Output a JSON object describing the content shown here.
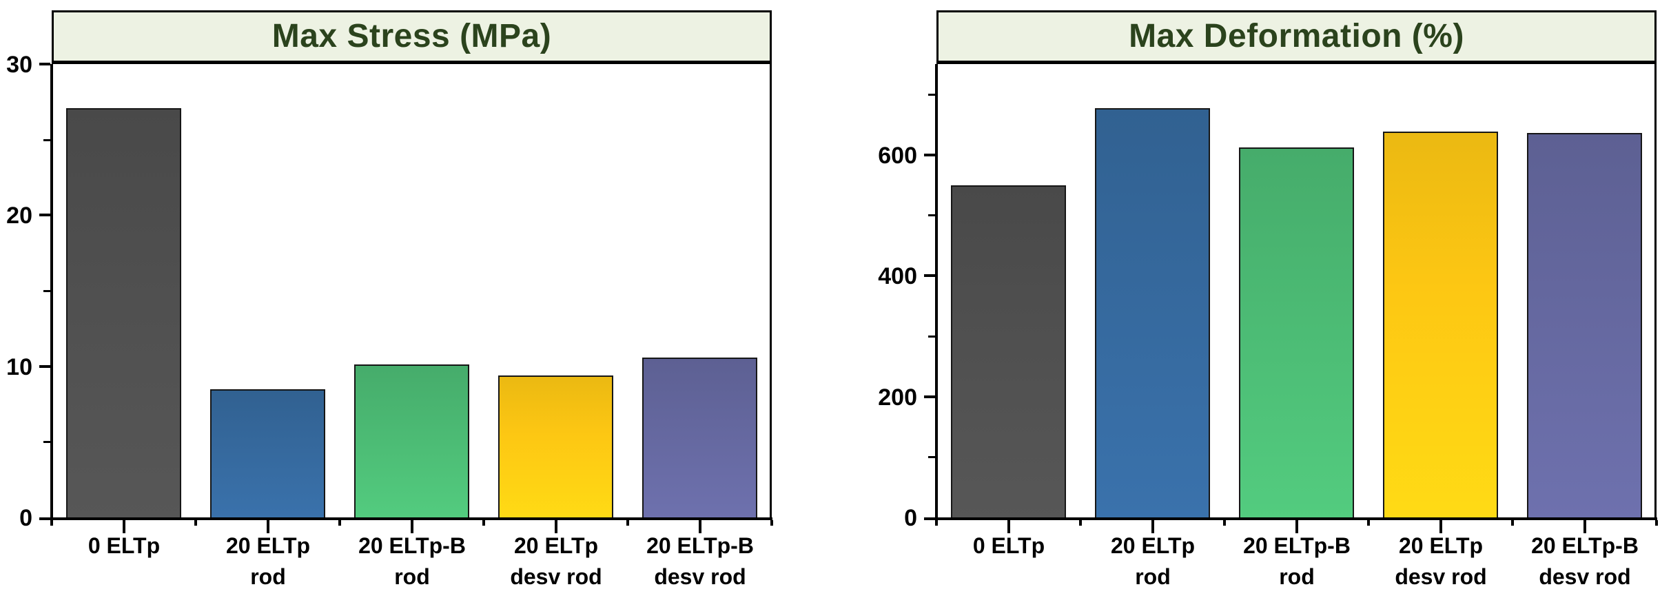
{
  "figure": {
    "background": "#ffffff"
  },
  "styles": {
    "title_bg": "#edf2e3",
    "title_text_color": "#2b431d",
    "axis_color": "#000000",
    "tick_label_color": "#000000",
    "bar_border_color": "#161616",
    "bar_colors": [
      "#4f4f4f",
      "#35689c",
      "#4bb973",
      "#fdc713",
      "#64679e"
    ]
  },
  "chart_data": [
    {
      "type": "bar",
      "title": "Max Stress (MPa)",
      "categories": [
        "0 ELTp",
        "20 ELTp rod",
        "20 ELTp-B rod",
        "20 ELTp desv rod",
        "20 ELTp-B desv rod"
      ],
      "tick_label_lines": [
        [
          "0 ELTp"
        ],
        [
          "20 ELTp",
          "rod"
        ],
        [
          "20 ELTp-B",
          "rod"
        ],
        [
          "20 ELTp",
          "desv rod"
        ],
        [
          "20 ELTp-B",
          "desv rod"
        ]
      ],
      "values": [
        27.1,
        8.5,
        10.1,
        9.4,
        10.6
      ],
      "ylim": [
        0,
        30
      ],
      "yticks_major": [
        0,
        10,
        20,
        30
      ],
      "yticks_minor": [
        5,
        15,
        25
      ],
      "xlabel": "",
      "ylabel": "",
      "grid": false,
      "legend": null
    },
    {
      "type": "bar",
      "title": "Max Deformation (%)",
      "categories": [
        "0 ELTp",
        "20 ELTp rod",
        "20 ELTp-B rod",
        "20 ELTp desv rod",
        "20 ELTp-B desv rod"
      ],
      "tick_label_lines": [
        [
          "0 ELTp"
        ],
        [
          "20 ELTp",
          "rod"
        ],
        [
          "20 ELTp-B",
          "rod"
        ],
        [
          "20 ELTp",
          "desv rod"
        ],
        [
          "20 ELTp-B",
          "desv rod"
        ]
      ],
      "values": [
        549,
        677,
        612,
        638,
        636
      ],
      "ylim": [
        0,
        750
      ],
      "yticks_major": [
        0,
        200,
        400,
        600
      ],
      "yticks_minor": [
        100,
        300,
        500,
        700
      ],
      "xlabel": "",
      "ylabel": "",
      "grid": false,
      "legend": null
    }
  ]
}
